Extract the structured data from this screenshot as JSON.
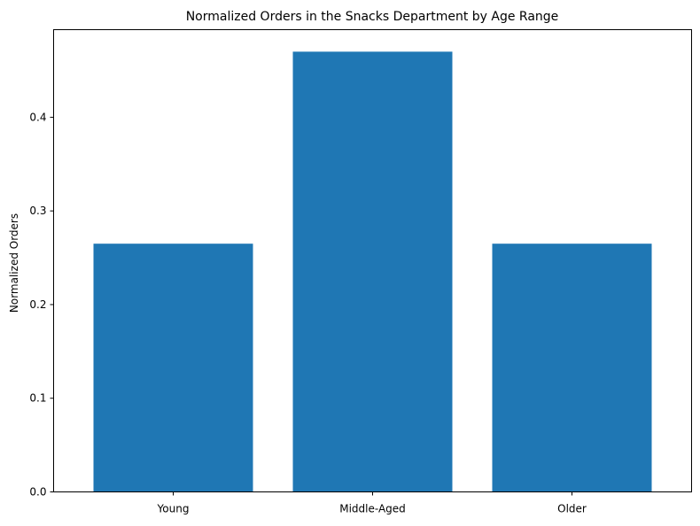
{
  "chart_data": {
    "type": "bar",
    "title": "Normalized Orders in the Snacks Department by Age Range",
    "xlabel": "",
    "ylabel": "Normalized Orders",
    "categories": [
      "Young",
      "Middle-Aged",
      "Older"
    ],
    "values": [
      0.265,
      0.47,
      0.265
    ],
    "ylim": [
      0,
      0.4935
    ],
    "yticks": [
      0.0,
      0.1,
      0.2,
      0.3,
      0.4
    ],
    "ytick_labels": [
      "0.0",
      "0.1",
      "0.2",
      "0.3",
      "0.4"
    ],
    "bar_color": "#1f77b4",
    "grid": false,
    "legend": "none"
  }
}
